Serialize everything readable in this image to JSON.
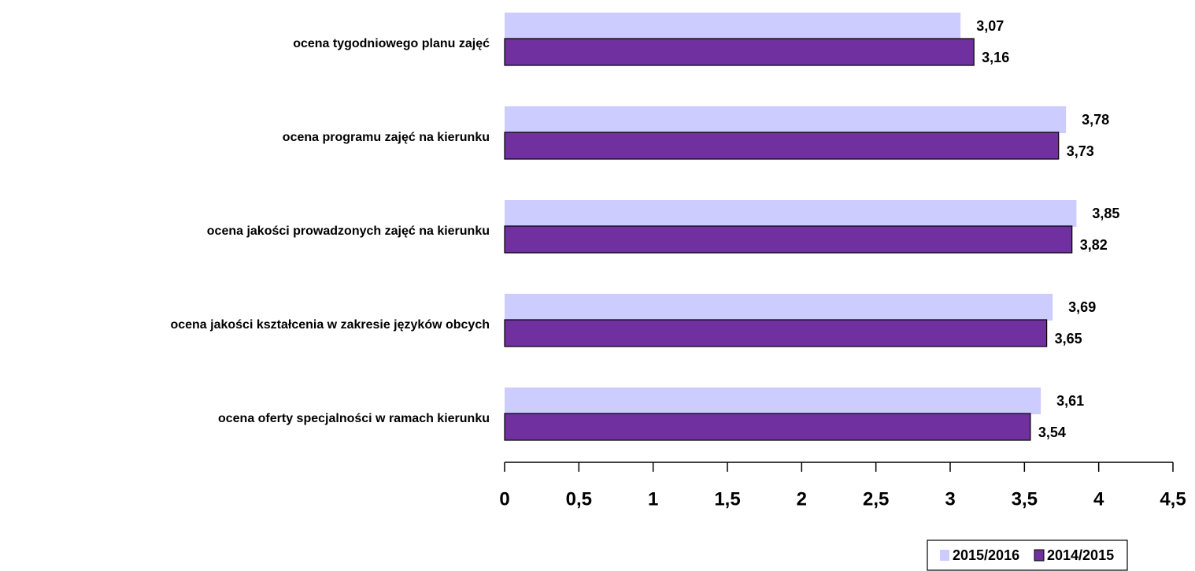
{
  "chart_data": {
    "type": "bar",
    "orientation": "horizontal",
    "categories": [
      "ocena tygodniowego planu zajęć",
      "ocena programu zajęć na kierunku",
      "ocena jakości prowadzonych zajęć na kierunku",
      "ocena jakości kształcenia w zakresie języków obcych",
      "ocena oferty specjalności w ramach kierunku"
    ],
    "series": [
      {
        "name": "2015/2016",
        "color": "#ccccff",
        "values": [
          3.07,
          3.78,
          3.85,
          3.69,
          3.61
        ],
        "value_labels": [
          "3,07",
          "3,78",
          "3,85",
          "3,69",
          "3,61"
        ]
      },
      {
        "name": "2014/2015",
        "color": "#7030a0",
        "values": [
          3.16,
          3.73,
          3.82,
          3.65,
          3.54
        ],
        "value_labels": [
          "3,16",
          "3,73",
          "3,82",
          "3,65",
          "3,54"
        ]
      }
    ],
    "xlim": [
      0,
      4.5
    ],
    "xticks": [
      0,
      {
        "value": 0.5,
        "label": "0,5"
      },
      1,
      {
        "value": 1.5,
        "label": "1,5"
      },
      2,
      {
        "value": 2.5,
        "label": "2,5"
      },
      3,
      {
        "value": 3.5,
        "label": "3,5"
      },
      4,
      {
        "value": 4.5,
        "label": "4,5"
      }
    ],
    "legend": "bottom"
  }
}
